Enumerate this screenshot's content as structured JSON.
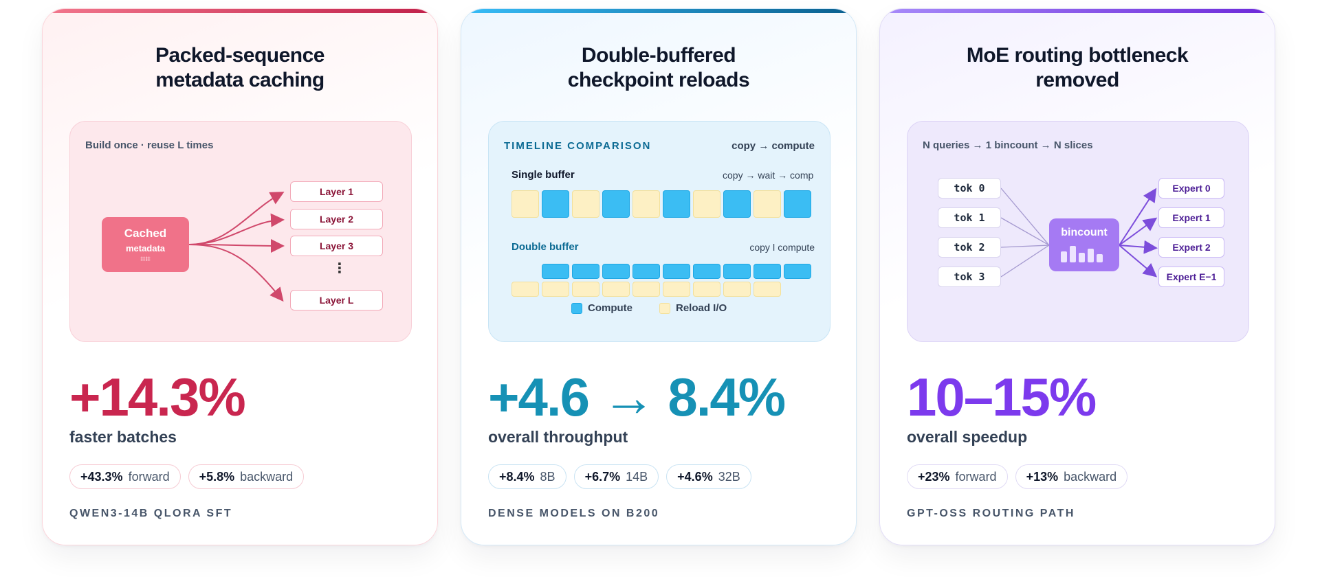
{
  "cards": [
    {
      "title_line1": "Packed-sequence",
      "title_line2": "metadata caching",
      "panel_label": "Build once · reuse L times",
      "cached_title": "Cached",
      "cached_sub": "metadata",
      "cached_glyph": "⌗⌗",
      "layers": [
        "Layer 1",
        "Layer 2",
        "Layer 3",
        "Layer L"
      ],
      "ellipsis": "⋮",
      "big_value": "+14.3%",
      "subtitle": "faster batches",
      "pills": [
        {
          "value": "+43.3%",
          "label": "forward"
        },
        {
          "value": "+5.8%",
          "label": "backward"
        }
      ],
      "footer": "QWEN3-14B QLORA SFT",
      "accent": "#c9264f"
    },
    {
      "title_line1": "Double-buffered",
      "title_line2": "checkpoint reloads",
      "panel_heading": "TIMELINE COMPARISON",
      "panel_right": "copy → compute",
      "single_label": "Single buffer",
      "single_right": "copy → wait → comp",
      "double_label": "Double buffer",
      "double_right": "copy ǀ compute",
      "legend_compute": "Compute",
      "legend_reload": "Reload I/O",
      "big_value": "+4.6 → 8.4%",
      "subtitle": "overall throughput",
      "pills": [
        {
          "value": "+8.4%",
          "label": "8B"
        },
        {
          "value": "+6.7%",
          "label": "14B"
        },
        {
          "value": "+4.6%",
          "label": "32B"
        }
      ],
      "footer": "DENSE MODELS ON B200",
      "accent": "#1691b5",
      "compute_color": "#3bbdf3",
      "reload_color": "#fdf0c4"
    },
    {
      "title_line1": "MoE routing bottleneck",
      "title_line2": "removed",
      "panel_label": "N queries → 1 bincount → N slices",
      "tokens": [
        "tok 0",
        "tok 1",
        "tok 2",
        "tok 3"
      ],
      "bincount_label": "bincount",
      "experts": [
        "Expert 0",
        "Expert 1",
        "Expert 2",
        "Expert E−1"
      ],
      "big_value": "10–15%",
      "subtitle": "overall speedup",
      "pills": [
        {
          "value": "+23%",
          "label": "forward"
        },
        {
          "value": "+13%",
          "label": "backward"
        }
      ],
      "footer": "GPT-OSS ROUTING PATH",
      "accent": "#7c3aed"
    }
  ]
}
